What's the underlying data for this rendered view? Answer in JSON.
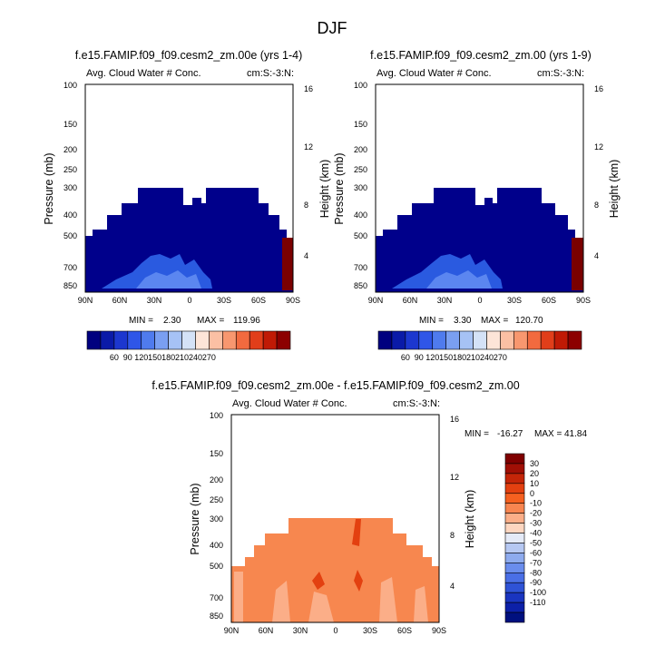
{
  "figure": {
    "title": "DJF"
  },
  "chart_data": [
    {
      "type": "heatmap",
      "title": "f.e15.FAMIP.f09_f09.cesm2_zm.00e (yrs 1-4)",
      "subtitle_left": "Avg. Cloud Water # Conc.",
      "subtitle_right": "cm:S:-3:N:",
      "ylabel": "Pressure (mb)",
      "ylabel_right": "Height (km)",
      "x_ticks": [
        "90N",
        "60N",
        "30N",
        "0",
        "30S",
        "60S",
        "90S"
      ],
      "y_ticks": [
        "100",
        "150",
        "200",
        "250",
        "300",
        "400",
        "500",
        "700",
        "850"
      ],
      "y2_ticks": [
        "16",
        "12",
        "8",
        "4"
      ],
      "stats": {
        "min_label": "MIN =",
        "min_value": "2.30",
        "max_label": "MAX =",
        "max_value": "119.96"
      },
      "colorbar_ticks": [
        "60",
        "90",
        "120",
        "150",
        "180",
        "210",
        "240",
        "270"
      ],
      "grid": false
    },
    {
      "type": "heatmap",
      "title": "f.e15.FAMIP.f09_f09.cesm2_zm.00 (yrs 1-9)",
      "subtitle_left": "Avg. Cloud Water # Conc.",
      "subtitle_right": "cm:S:-3:N:",
      "ylabel": "Pressure (mb)",
      "ylabel_right": "Height (km)",
      "x_ticks": [
        "90N",
        "60N",
        "30N",
        "0",
        "30S",
        "60S",
        "90S"
      ],
      "y_ticks": [
        "100",
        "150",
        "200",
        "250",
        "300",
        "400",
        "500",
        "700",
        "850"
      ],
      "y2_ticks": [
        "16",
        "12",
        "8",
        "4"
      ],
      "stats": {
        "min_label": "MIN =",
        "min_value": "3.30",
        "max_label": "MAX =",
        "max_value": "120.70"
      },
      "colorbar_ticks": [
        "60",
        "90",
        "120",
        "150",
        "180",
        "210",
        "240",
        "270"
      ],
      "grid": false
    },
    {
      "type": "heatmap",
      "title": "f.e15.FAMIP.f09_f09.cesm2_zm.00e - f.e15.FAMIP.f09_f09.cesm2_zm.00",
      "subtitle_left": "Avg. Cloud Water # Conc.",
      "subtitle_right": "cm:S:-3:N:",
      "ylabel": "Pressure (mb)",
      "ylabel_right": "Height (km)",
      "x_ticks": [
        "90N",
        "60N",
        "30N",
        "0",
        "30S",
        "60S",
        "90S"
      ],
      "y_ticks": [
        "100",
        "150",
        "200",
        "250",
        "300",
        "400",
        "500",
        "700",
        "850"
      ],
      "y2_ticks": [
        "16",
        "12",
        "8",
        "4"
      ],
      "stats": {
        "min_label": "MIN =",
        "min_value": "-16.27",
        "max_label": "MAX =",
        "max_value": "41.84"
      },
      "colorbar_ticks": [
        "30",
        "20",
        "10",
        "0",
        "-10",
        "-20",
        "-30",
        "-40",
        "-50",
        "-60",
        "-70",
        "-80",
        "-90",
        "-100",
        "-110"
      ],
      "grid": false
    }
  ],
  "colors": {
    "cb_abs": [
      "#00007f",
      "#0a1aa8",
      "#1c37cf",
      "#2f56e8",
      "#4f7bee",
      "#7a9ff2",
      "#a6c2f5",
      "#d4e2f7",
      "#fde5d8",
      "#fbc0a4",
      "#f8976f",
      "#f26a3f",
      "#e13e1a",
      "#c01a05",
      "#8c0000"
    ],
    "cb_diff": [
      "#7f0000",
      "#a00f05",
      "#c42508",
      "#e34010",
      "#f56020",
      "#f88550",
      "#fbae88",
      "#fdd6c0",
      "#e4eaf7",
      "#b6c8f2",
      "#8eabee",
      "#6a8ded",
      "#4a6fe6",
      "#2f53d6",
      "#1a35c0",
      "#0c20a8",
      "#00107f"
    ],
    "field_deep": "#00008b",
    "field_light": "#2a5ae0",
    "field_lighter": "#5b86f0",
    "diff_base": "#f7874f",
    "diff_light": "#fbae88",
    "diff_dark": "#e34010"
  }
}
